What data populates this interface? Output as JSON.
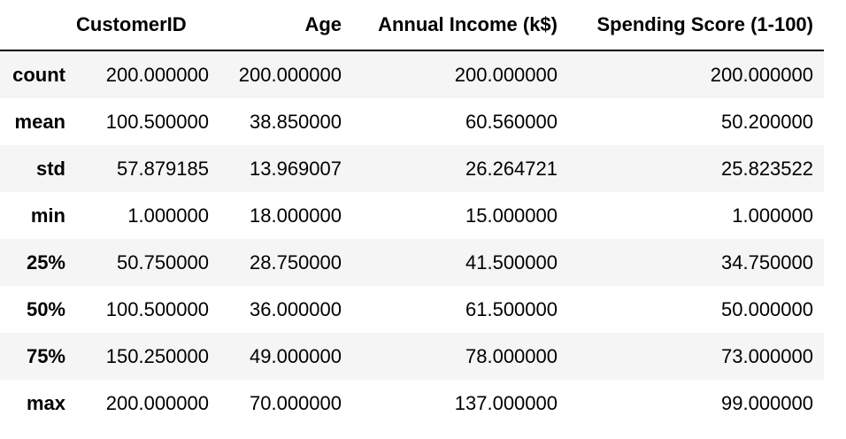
{
  "table": {
    "index_header": "",
    "columns": [
      "CustomerID",
      "Age",
      "Annual Income (k$)",
      "Spending Score (1-100)"
    ],
    "rows": [
      {
        "label": "count",
        "values": [
          "200.000000",
          "200.000000",
          "200.000000",
          "200.000000"
        ]
      },
      {
        "label": "mean",
        "values": [
          "100.500000",
          "38.850000",
          "60.560000",
          "50.200000"
        ]
      },
      {
        "label": "std",
        "values": [
          "57.879185",
          "13.969007",
          "26.264721",
          "25.823522"
        ]
      },
      {
        "label": "min",
        "values": [
          "1.000000",
          "18.000000",
          "15.000000",
          "1.000000"
        ]
      },
      {
        "label": "25%",
        "values": [
          "50.750000",
          "28.750000",
          "41.500000",
          "34.750000"
        ]
      },
      {
        "label": "50%",
        "values": [
          "100.500000",
          "36.000000",
          "61.500000",
          "50.000000"
        ]
      },
      {
        "label": "75%",
        "values": [
          "150.250000",
          "49.000000",
          "78.000000",
          "73.000000"
        ]
      },
      {
        "label": "max",
        "values": [
          "200.000000",
          "70.000000",
          "137.000000",
          "99.000000"
        ]
      }
    ]
  }
}
